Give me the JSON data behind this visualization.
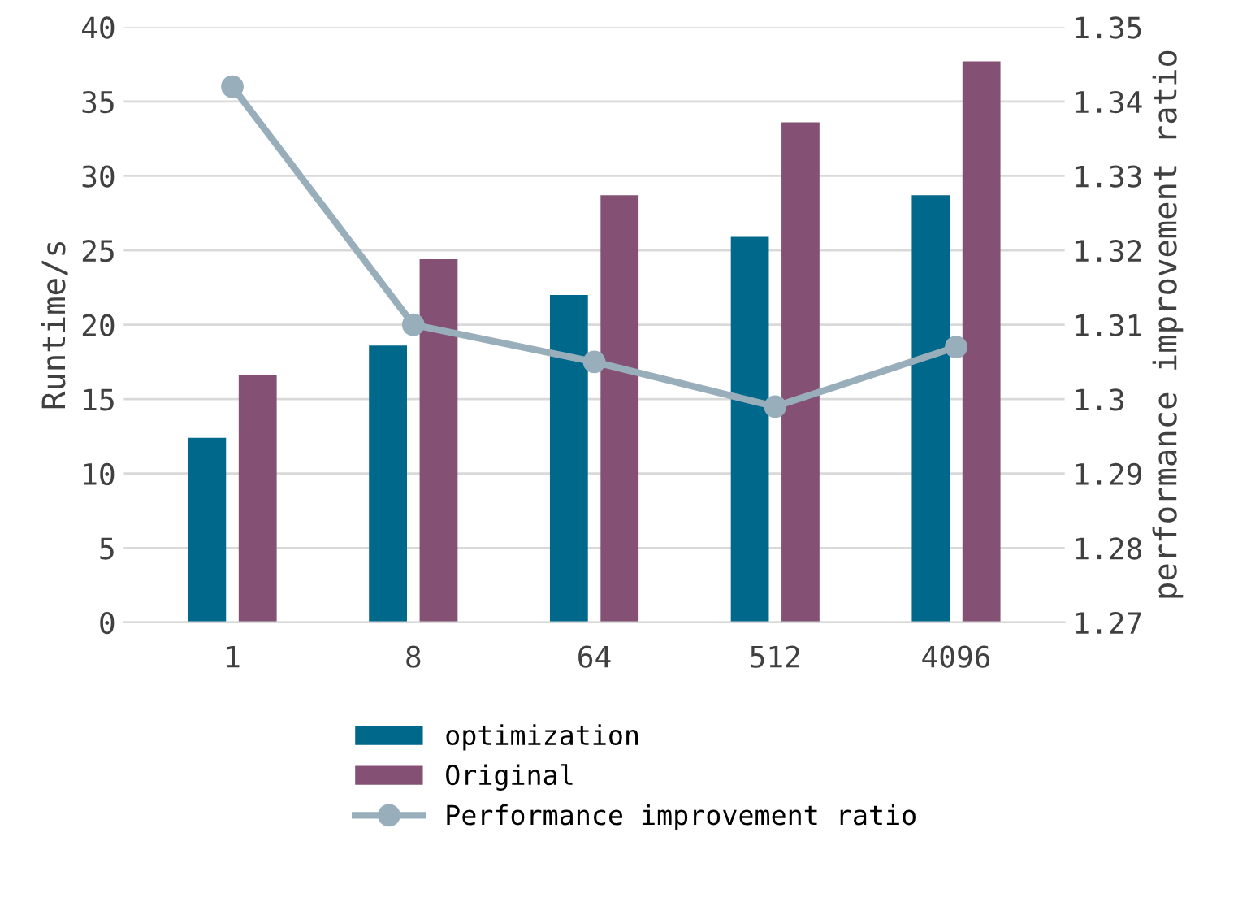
{
  "chart_data": {
    "type": "bar",
    "categories": [
      "1",
      "8",
      "64",
      "512",
      "4096"
    ],
    "ylabel": "Runtime/s",
    "y2label": "performance improvement ratio",
    "ylim": [
      0,
      40
    ],
    "yticks": [
      0,
      5,
      10,
      15,
      20,
      25,
      30,
      35,
      40
    ],
    "y2lim": [
      1.27,
      1.35
    ],
    "y2ticks": [
      1.27,
      1.28,
      1.29,
      1.3,
      1.31,
      1.32,
      1.33,
      1.34,
      1.35
    ],
    "grid": "y",
    "legend": "bottom",
    "series": [
      {
        "name": "optimization",
        "color": "#00688b",
        "values": [
          12.4,
          18.6,
          22.0,
          25.9,
          28.7
        ]
      },
      {
        "name": "Original",
        "color": "#845073",
        "values": [
          16.6,
          24.4,
          28.7,
          33.6,
          37.7
        ]
      },
      {
        "name": "Performance improvement ratio",
        "type": "line",
        "axis": "y2",
        "color": "#99aebb",
        "marker": "circle",
        "line_style": "solid",
        "values": [
          1.342,
          1.31,
          1.305,
          1.299,
          1.307
        ]
      }
    ]
  }
}
